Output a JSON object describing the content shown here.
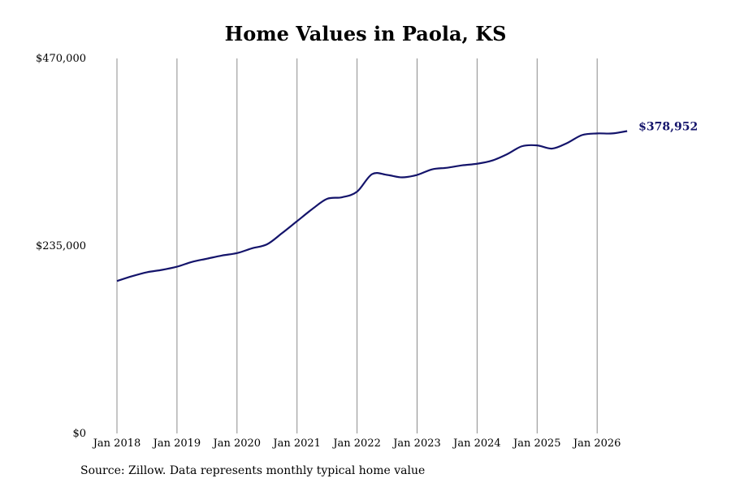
{
  "chart_data": {
    "type": "line",
    "title": "Home Values in Paola, KS",
    "xlabel": "",
    "ylabel": "",
    "ylim": [
      0,
      470000
    ],
    "y_ticks": [
      "$470,000",
      "$235,000",
      "$0"
    ],
    "y_tick_values": [
      470000,
      235000,
      0
    ],
    "x_ticks": [
      "Jan 2018",
      "Jan 2019",
      "Jan 2020",
      "Jan 2021",
      "Jan 2022",
      "Jan 2023",
      "Jan 2024",
      "Jan 2025",
      "Jan 2026"
    ],
    "grid": "vertical",
    "legend": "none",
    "line_color": "#14146b",
    "end_label": "$378,952",
    "series": [
      {
        "x": [
          "2018-01",
          "2018-04",
          "2018-07",
          "2018-10",
          "2019-01",
          "2019-04",
          "2019-07",
          "2019-10",
          "2020-01",
          "2020-04",
          "2020-07",
          "2020-10",
          "2021-01",
          "2021-04",
          "2021-07",
          "2021-10",
          "2022-01",
          "2022-04",
          "2022-07",
          "2022-10",
          "2023-01",
          "2023-04",
          "2023-07",
          "2023-10",
          "2024-01",
          "2024-04",
          "2024-07",
          "2024-10",
          "2025-01",
          "2025-04",
          "2025-07",
          "2025-10",
          "2026-01",
          "2026-04",
          "2026-07"
        ],
        "y": [
          191000,
          197000,
          202000,
          205000,
          209000,
          215000,
          219000,
          223000,
          226000,
          232000,
          237000,
          251000,
          266000,
          281000,
          294000,
          296000,
          303000,
          325000,
          324000,
          321000,
          324000,
          331000,
          333000,
          336000,
          338000,
          342000,
          350000,
          360000,
          361000,
          357000,
          364000,
          374000,
          376000,
          376000,
          378952
        ]
      }
    ]
  },
  "source_note": "Source: Zillow. Data represents monthly typical home value"
}
